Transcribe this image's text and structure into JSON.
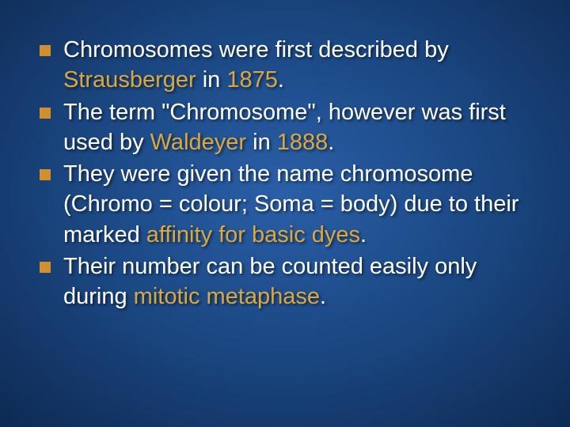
{
  "slide": {
    "background_gradient": [
      "#2a5fa8",
      "#1a4680",
      "#0d2850",
      "#041530",
      "#000510"
    ],
    "bullet_color": "#d09030",
    "highlight_color": "#dba840",
    "text_color": "#ffffff",
    "font_family": "Comic Sans MS",
    "font_size_pt": 22,
    "bullets": [
      {
        "plain1": "Chromosomes were first described by ",
        "hl1": "Strausberger",
        "plain2": " in ",
        "hl2": "1875",
        "plain3": "."
      },
      {
        "plain1": "The term \"Chromosome\", however was first used by ",
        "hl1": "Waldeyer",
        "plain2": " in ",
        "hl2": "1888",
        "plain3": "."
      },
      {
        "plain1": "They were given the name chromosome (Chromo = colour; Soma =  body) due to their marked ",
        "hl1": "affinity for basic dyes",
        "plain2": ".",
        "hl2": "",
        "plain3": ""
      },
      {
        "plain1": "Their number can be counted easily only during ",
        "hl1": "mitotic metaphase",
        "plain2": ".",
        "hl2": "",
        "plain3": ""
      }
    ]
  }
}
